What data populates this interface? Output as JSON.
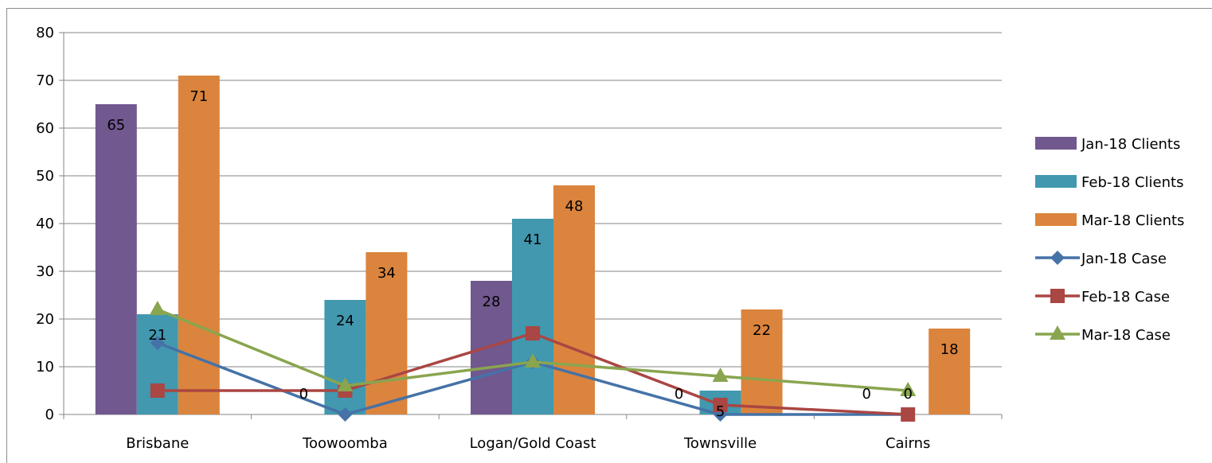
{
  "chart_data": {
    "type": "bar",
    "categories": [
      "Brisbane",
      "Toowoomba",
      "Logan/Gold Coast",
      "Townsville",
      "Cairns"
    ],
    "ylim": [
      0,
      80
    ],
    "yticks": [
      0,
      10,
      20,
      30,
      40,
      50,
      60,
      70,
      80
    ],
    "grid": true,
    "legend_position": "right",
    "bar_series": [
      {
        "name": "Jan-18 Clients",
        "color": "#71588f",
        "values": [
          65,
          0,
          28,
          0,
          0
        ],
        "labels": [
          "65",
          "0",
          "28",
          "0",
          "0"
        ]
      },
      {
        "name": "Feb-18 Clients",
        "color": "#4198af",
        "values": [
          21,
          24,
          41,
          5,
          0
        ],
        "labels": [
          "21",
          "24",
          "41",
          "5",
          "0"
        ]
      },
      {
        "name": "Mar-18 Clients",
        "color": "#db843d",
        "values": [
          71,
          34,
          48,
          22,
          18
        ],
        "labels": [
          "71",
          "34",
          "48",
          "22",
          "18"
        ]
      }
    ],
    "line_series": [
      {
        "name": "Jan-18 Case",
        "color": "#4572a7",
        "marker": "diamond",
        "values": [
          15,
          0,
          11,
          0,
          0
        ]
      },
      {
        "name": "Feb-18 Case",
        "color": "#aa4643",
        "marker": "square",
        "values": [
          5,
          5,
          17,
          2,
          0
        ]
      },
      {
        "name": "Mar-18 Case",
        "color": "#89a54e",
        "marker": "triangle",
        "values": [
          22,
          6,
          11,
          8,
          5
        ]
      }
    ]
  }
}
